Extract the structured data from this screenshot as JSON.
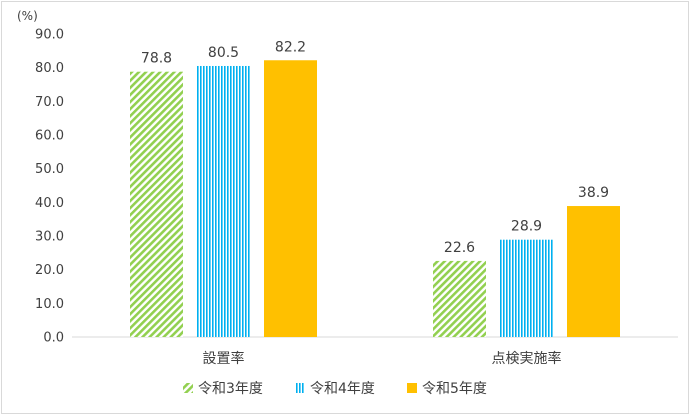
{
  "chart_data": {
    "type": "bar",
    "unit_label": "(%)",
    "categories": [
      "設置率",
      "点検実施率"
    ],
    "series": [
      {
        "name": "令和3年度",
        "values": [
          78.8,
          22.6
        ],
        "color": "#92d050",
        "pattern": "diagonal-hatch"
      },
      {
        "name": "令和4年度",
        "values": [
          80.5,
          28.9
        ],
        "color": "#00b0f0",
        "pattern": "vertical-stripes"
      },
      {
        "name": "令和5年度",
        "values": [
          82.2,
          38.9
        ],
        "color": "#ffc000",
        "pattern": "solid"
      }
    ],
    "y_ticks": [
      "0.0",
      "10.0",
      "20.0",
      "30.0",
      "40.0",
      "50.0",
      "60.0",
      "70.0",
      "80.0",
      "90.0"
    ],
    "ylim": [
      0,
      90
    ],
    "grid": false,
    "data_labels": true,
    "legend_position": "bottom"
  }
}
